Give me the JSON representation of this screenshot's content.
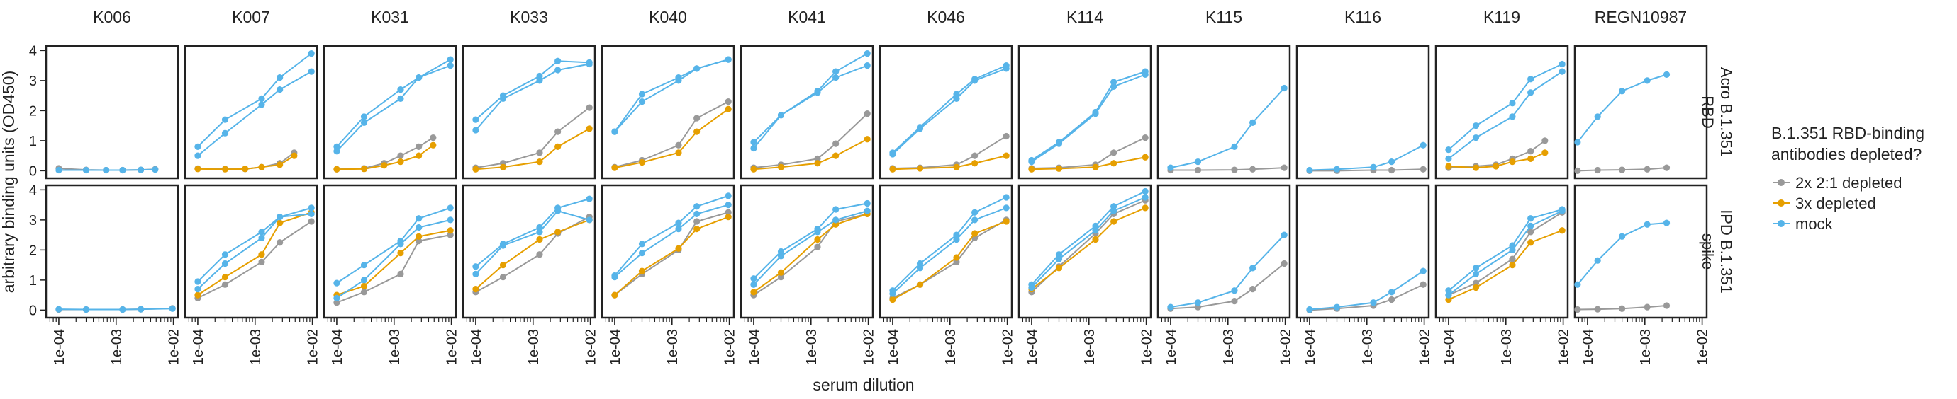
{
  "chart_data": {
    "type": "line",
    "ylabel": "arbitrary binding units (OD450)",
    "xlabel": "serum dilution",
    "x_scale": "log",
    "xlim": [
      6e-05,
      0.012
    ],
    "ylim": [
      -0.25,
      4.15
    ],
    "x_ticks": [
      0.0001,
      0.001,
      0.01
    ],
    "x_tick_labels": [
      "1e-04",
      "1e-03",
      "1e-02"
    ],
    "y_ticks": [
      0,
      1,
      2,
      3,
      4
    ],
    "y_tick_labels": [
      "0",
      "1",
      "2",
      "3",
      "4"
    ],
    "columns": [
      "K006",
      "K007",
      "K031",
      "K033",
      "K040",
      "K041",
      "K046",
      "K114",
      "K115",
      "K116",
      "K119",
      "REGN10987"
    ],
    "rows": [
      "Acro B.1.351 RBD",
      "IPD B.1.351 spike"
    ],
    "legend": {
      "title": "B.1.351 RBD-binding antibodies depleted?",
      "position": "right",
      "entries": [
        {
          "label": "2x 2:1 depleted",
          "color": "#999999"
        },
        {
          "label": "3x depleted",
          "color": "#E69F00"
        },
        {
          "label": "mock",
          "color": "#56B4E9"
        }
      ]
    },
    "dilutions": [
      0.0001,
      0.0003,
      0.00067,
      0.0013,
      0.0027,
      0.0048,
      0.0096
    ],
    "dilutions_regn": [
      6.7e-05,
      0.00015,
      0.0004,
      0.0011,
      0.0024,
      0.0053
    ],
    "panels": [
      {
        "column": "K006",
        "row": "Acro B.1.351 RBD",
        "series": [
          {
            "name": "2x 2:1 depleted",
            "values": [
              0.08,
              0.03,
              0.02,
              0.02,
              0.03,
              0.05
            ]
          },
          {
            "name": "mock",
            "values": [
              0.02,
              0.02,
              0.02,
              0.02,
              0.03,
              0.04
            ]
          }
        ]
      },
      {
        "column": "K007",
        "row": "Acro B.1.351 RBD",
        "series": [
          {
            "name": "2x 2:1 depleted",
            "values": [
              0.07,
              0.06,
              0.06,
              0.12,
              0.25,
              0.6
            ]
          },
          {
            "name": "3x depleted",
            "values": [
              0.06,
              0.05,
              0.06,
              0.12,
              0.2,
              0.5
            ]
          },
          {
            "name": "mock",
            "values": [
              0.8,
              1.7,
              2.4,
              3.1,
              3.9
            ]
          },
          {
            "name": "mock",
            "values": [
              0.5,
              1.25,
              2.2,
              2.7,
              3.3
            ]
          }
        ]
      },
      {
        "column": "K031",
        "row": "Acro B.1.351 RBD",
        "series": [
          {
            "name": "2x 2:1 depleted",
            "values": [
              0.05,
              0.08,
              0.25,
              0.5,
              0.8,
              1.1
            ]
          },
          {
            "name": "3x depleted",
            "values": [
              0.05,
              0.06,
              0.18,
              0.3,
              0.5,
              0.85
            ]
          },
          {
            "name": "mock",
            "values": [
              0.8,
              1.8,
              2.7,
              3.1,
              3.7
            ]
          },
          {
            "name": "mock",
            "values": [
              0.65,
              1.6,
              2.4,
              3.1,
              3.5
            ]
          }
        ]
      },
      {
        "column": "K033",
        "row": "Acro B.1.351 RBD",
        "series": [
          {
            "name": "2x 2:1 depleted",
            "values": [
              0.1,
              0.25,
              0.6,
              1.3,
              2.1
            ]
          },
          {
            "name": "3x depleted",
            "values": [
              0.05,
              0.12,
              0.3,
              0.8,
              1.4
            ]
          },
          {
            "name": "mock",
            "values": [
              1.7,
              2.5,
              3.15,
              3.65,
              3.6
            ]
          },
          {
            "name": "mock",
            "values": [
              1.35,
              2.4,
              3.0,
              3.35,
              3.55
            ]
          }
        ]
      },
      {
        "column": "K040",
        "row": "Acro B.1.351 RBD",
        "series": [
          {
            "name": "2x 2:1 depleted",
            "values": [
              0.12,
              0.35,
              0.85,
              1.75,
              2.3
            ]
          },
          {
            "name": "3x depleted",
            "values": [
              0.1,
              0.28,
              0.6,
              1.3,
              2.05
            ]
          },
          {
            "name": "mock",
            "values": [
              1.3,
              2.55,
              3.1,
              3.4,
              3.7
            ]
          },
          {
            "name": "mock",
            "values": [
              1.3,
              2.3,
              3.0,
              3.4,
              3.7
            ]
          }
        ]
      },
      {
        "column": "K041",
        "row": "Acro B.1.351 RBD",
        "series": [
          {
            "name": "2x 2:1 depleted",
            "values": [
              0.1,
              0.2,
              0.4,
              0.9,
              1.9
            ]
          },
          {
            "name": "3x depleted",
            "values": [
              0.05,
              0.12,
              0.25,
              0.5,
              1.05
            ]
          },
          {
            "name": "mock",
            "values": [
              0.95,
              1.85,
              2.65,
              3.3,
              3.9
            ]
          },
          {
            "name": "mock",
            "values": [
              0.75,
              1.85,
              2.6,
              3.1,
              3.5
            ]
          }
        ]
      },
      {
        "column": "K046",
        "row": "Acro B.1.351 RBD",
        "series": [
          {
            "name": "2x 2:1 depleted",
            "values": [
              0.08,
              0.1,
              0.2,
              0.5,
              1.15
            ]
          },
          {
            "name": "3x depleted",
            "values": [
              0.05,
              0.08,
              0.12,
              0.25,
              0.5
            ]
          },
          {
            "name": "mock",
            "values": [
              0.6,
              1.45,
              2.55,
              3.05,
              3.5
            ]
          },
          {
            "name": "mock",
            "values": [
              0.55,
              1.4,
              2.4,
              3.0,
              3.4
            ]
          }
        ]
      },
      {
        "column": "K114",
        "row": "Acro B.1.351 RBD",
        "series": [
          {
            "name": "2x 2:1 depleted",
            "values": [
              0.08,
              0.1,
              0.2,
              0.6,
              1.1
            ]
          },
          {
            "name": "3x depleted",
            "values": [
              0.05,
              0.07,
              0.12,
              0.25,
              0.45
            ]
          },
          {
            "name": "mock",
            "values": [
              0.35,
              0.95,
              1.95,
              2.95,
              3.3
            ]
          },
          {
            "name": "mock",
            "values": [
              0.3,
              0.9,
              1.9,
              2.8,
              3.2
            ]
          }
        ]
      },
      {
        "column": "K115",
        "row": "Acro B.1.351 RBD",
        "series": [
          {
            "name": "2x 2:1 depleted",
            "values": [
              0.02,
              0.02,
              0.03,
              0.05,
              0.1
            ]
          },
          {
            "name": "mock",
            "values": [
              0.1,
              0.3,
              0.8,
              1.6,
              2.75
            ]
          }
        ]
      },
      {
        "column": "K116",
        "row": "Acro B.1.351 RBD",
        "series": [
          {
            "name": "2x 2:1 depleted",
            "values": [
              0.0,
              0.0,
              0.02,
              0.02,
              0.05
            ]
          },
          {
            "name": "mock",
            "values": [
              0.02,
              0.05,
              0.12,
              0.3,
              0.85
            ]
          }
        ]
      },
      {
        "column": "K119",
        "row": "Acro B.1.351 RBD",
        "series": [
          {
            "name": "2x 2:1 depleted",
            "values": [
              0.1,
              0.15,
              0.2,
              0.4,
              0.65,
              1.0
            ]
          },
          {
            "name": "3x depleted",
            "values": [
              0.15,
              0.1,
              0.15,
              0.3,
              0.4,
              0.6
            ]
          },
          {
            "name": "mock",
            "values": [
              0.7,
              1.5,
              2.25,
              3.05,
              3.55
            ]
          },
          {
            "name": "mock",
            "values": [
              0.4,
              1.1,
              1.8,
              2.6,
              3.3
            ]
          }
        ]
      },
      {
        "column": "REGN10987",
        "row": "Acro B.1.351 RBD",
        "series": [
          {
            "name": "2x 2:1 depleted",
            "values": [
              0.0,
              0.02,
              0.03,
              0.05,
              0.1
            ]
          },
          {
            "name": "mock",
            "values": [
              0.95,
              1.8,
              2.65,
              3.0,
              3.2
            ]
          }
        ]
      },
      {
        "column": "K006",
        "row": "IPD B.1.351 spike",
        "series": [
          {
            "name": "2x 2:1 depleted",
            "values": [
              0.02,
              0.02,
              0.02,
              0.03,
              0.06
            ]
          },
          {
            "name": "mock",
            "values": [
              0.03,
              0.02,
              0.02,
              0.03,
              0.05
            ]
          }
        ]
      },
      {
        "column": "K007",
        "row": "IPD B.1.351 spike",
        "series": [
          {
            "name": "2x 2:1 depleted",
            "values": [
              0.4,
              0.85,
              1.6,
              2.25,
              2.95
            ]
          },
          {
            "name": "3x depleted",
            "values": [
              0.5,
              1.1,
              1.85,
              2.9,
              3.25
            ]
          },
          {
            "name": "mock",
            "values": [
              0.95,
              1.85,
              2.6,
              3.1,
              3.4
            ]
          },
          {
            "name": "mock",
            "values": [
              0.7,
              1.55,
              2.4,
              3.1,
              3.2
            ]
          }
        ]
      },
      {
        "column": "K031",
        "row": "IPD B.1.351 spike",
        "series": [
          {
            "name": "2x 2:1 depleted",
            "values": [
              0.25,
              0.6,
              1.2,
              2.3,
              2.5
            ]
          },
          {
            "name": "3x depleted",
            "values": [
              0.5,
              0.8,
              1.9,
              2.45,
              2.65
            ]
          },
          {
            "name": "mock",
            "values": [
              0.9,
              1.5,
              2.3,
              3.05,
              3.4
            ]
          },
          {
            "name": "mock",
            "values": [
              0.4,
              1.0,
              2.2,
              2.75,
              3.0
            ]
          }
        ]
      },
      {
        "column": "K033",
        "row": "IPD B.1.351 spike",
        "series": [
          {
            "name": "2x 2:1 depleted",
            "values": [
              0.6,
              1.1,
              1.85,
              2.55,
              3.1
            ]
          },
          {
            "name": "3x depleted",
            "values": [
              0.7,
              1.5,
              2.35,
              2.6,
              3.0
            ]
          },
          {
            "name": "mock",
            "values": [
              1.45,
              2.2,
              2.75,
              3.4,
              3.7
            ]
          },
          {
            "name": "mock",
            "values": [
              1.2,
              2.15,
              2.6,
              3.3,
              3.0
            ]
          }
        ]
      },
      {
        "column": "K040",
        "row": "IPD B.1.351 spike",
        "series": [
          {
            "name": "2x 2:1 depleted",
            "values": [
              0.5,
              1.2,
              2.0,
              2.95,
              3.25
            ]
          },
          {
            "name": "3x depleted",
            "values": [
              0.5,
              1.3,
              2.05,
              2.7,
              3.1
            ]
          },
          {
            "name": "mock",
            "values": [
              1.15,
              2.2,
              2.9,
              3.45,
              3.8
            ]
          },
          {
            "name": "mock",
            "values": [
              1.1,
              1.9,
              2.7,
              3.2,
              3.5
            ]
          }
        ]
      },
      {
        "column": "K041",
        "row": "IPD B.1.351 spike",
        "series": [
          {
            "name": "2x 2:1 depleted",
            "values": [
              0.5,
              1.1,
              2.1,
              2.95,
              3.2
            ]
          },
          {
            "name": "3x depleted",
            "values": [
              0.6,
              1.25,
              2.35,
              2.85,
              3.2
            ]
          },
          {
            "name": "mock",
            "values": [
              1.05,
              1.95,
              2.7,
              3.35,
              3.55
            ]
          },
          {
            "name": "mock",
            "values": [
              0.85,
              1.8,
              2.6,
              3.0,
              3.3
            ]
          }
        ]
      },
      {
        "column": "K046",
        "row": "IPD B.1.351 spike",
        "series": [
          {
            "name": "2x 2:1 depleted",
            "values": [
              0.4,
              0.85,
              1.6,
              2.4,
              3.0
            ]
          },
          {
            "name": "3x depleted",
            "values": [
              0.35,
              0.85,
              1.75,
              2.55,
              2.95
            ]
          },
          {
            "name": "mock",
            "values": [
              0.65,
              1.55,
              2.5,
              3.25,
              3.75
            ]
          },
          {
            "name": "mock",
            "values": [
              0.55,
              1.4,
              2.35,
              3.0,
              3.4
            ]
          }
        ]
      },
      {
        "column": "K114",
        "row": "IPD B.1.351 spike",
        "series": [
          {
            "name": "2x 2:1 depleted",
            "values": [
              0.6,
              1.45,
              2.55,
              3.2,
              3.65
            ]
          },
          {
            "name": "3x depleted",
            "values": [
              0.7,
              1.4,
              2.35,
              2.95,
              3.4
            ]
          },
          {
            "name": "mock",
            "values": [
              0.85,
              1.85,
              2.8,
              3.45,
              3.95
            ]
          },
          {
            "name": "mock",
            "values": [
              0.75,
              1.7,
              2.65,
              3.3,
              3.75
            ]
          }
        ]
      },
      {
        "column": "K115",
        "row": "IPD B.1.351 spike",
        "series": [
          {
            "name": "2x 2:1 depleted",
            "values": [
              0.05,
              0.1,
              0.3,
              0.7,
              1.55
            ]
          },
          {
            "name": "mock",
            "values": [
              0.1,
              0.25,
              0.65,
              1.4,
              2.5
            ]
          }
        ]
      },
      {
        "column": "K116",
        "row": "IPD B.1.351 spike",
        "series": [
          {
            "name": "2x 2:1 depleted",
            "values": [
              0.0,
              0.05,
              0.15,
              0.35,
              0.85
            ]
          },
          {
            "name": "mock",
            "values": [
              0.02,
              0.1,
              0.25,
              0.6,
              1.3
            ]
          }
        ]
      },
      {
        "column": "K119",
        "row": "IPD B.1.351 spike",
        "series": [
          {
            "name": "2x 2:1 depleted",
            "values": [
              0.5,
              0.9,
              1.7,
              2.6,
              3.25
            ]
          },
          {
            "name": "3x depleted",
            "values": [
              0.35,
              0.75,
              1.5,
              2.25,
              2.65
            ]
          },
          {
            "name": "mock",
            "values": [
              0.65,
              1.4,
              2.15,
              3.05,
              3.35
            ]
          },
          {
            "name": "mock",
            "values": [
              0.5,
              1.2,
              2.0,
              2.8,
              3.3
            ]
          }
        ]
      },
      {
        "column": "REGN10987",
        "row": "IPD B.1.351 spike",
        "series": [
          {
            "name": "2x 2:1 depleted",
            "values": [
              0.02,
              0.03,
              0.05,
              0.1,
              0.15
            ]
          },
          {
            "name": "mock",
            "values": [
              0.85,
              1.65,
              2.45,
              2.85,
              2.9
            ]
          }
        ]
      }
    ]
  }
}
